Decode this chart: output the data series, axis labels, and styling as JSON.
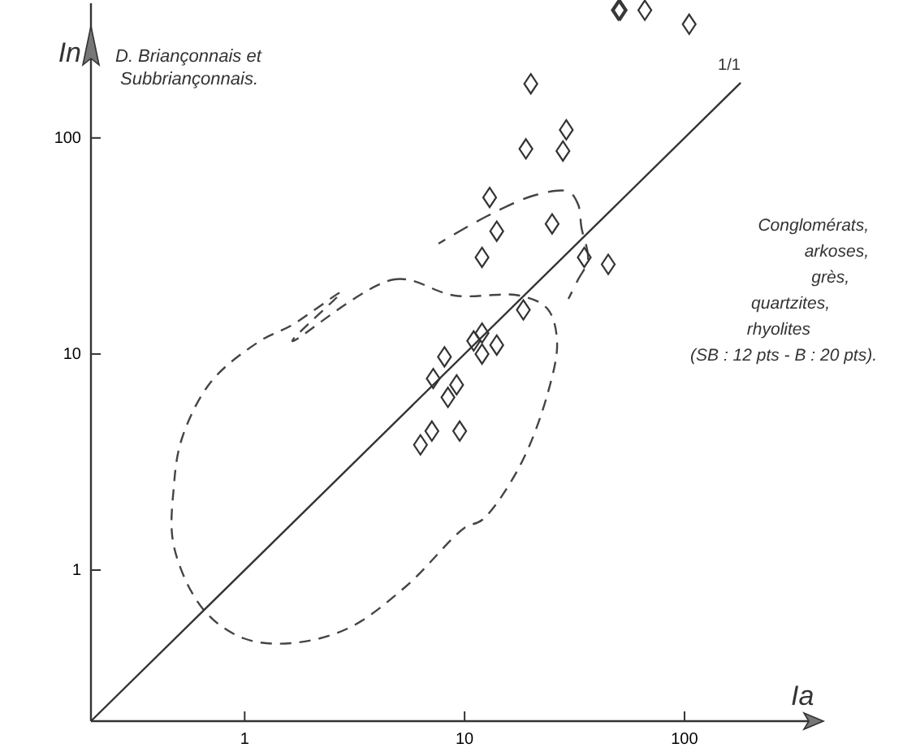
{
  "chart_data": {
    "type": "scatter",
    "title": "D. Briançonnais et Subbriançonnais.",
    "ylabel": "In",
    "xlabel": "Ia",
    "log": "xy",
    "xlim": [
      0.2,
      400
    ],
    "ylim": [
      0.2,
      420
    ],
    "xticks": [
      1,
      10,
      100
    ],
    "yticks": [
      1,
      10,
      100
    ],
    "annotations": [
      "Conglomérats, arkoses, grès, quartzites, rhyolites (SB : 12 pts - B : 20 pts)."
    ],
    "series": [
      {
        "marker": "diamond",
        "color": "#333333",
        "x": [
          50,
          51,
          66,
          105,
          20,
          19,
          29,
          28,
          13,
          14,
          25,
          12,
          35,
          45,
          18.5,
          12,
          11,
          12,
          14,
          8.1,
          7.2,
          9.2,
          8.4,
          7.1,
          9.5,
          6.3
        ],
        "values": [
          390,
          390,
          390,
          336,
          178,
          89,
          109,
          87,
          53,
          37,
          40,
          28,
          28,
          26,
          16,
          12.5,
          11.5,
          10,
          11,
          9.7,
          7.7,
          7.2,
          6.3,
          4.4,
          4.4,
          3.8
        ]
      },
      {
        "type": "line",
        "name": "1/1",
        "color": "#333333",
        "line_style": "solid",
        "x": [
          0.2,
          180
        ],
        "values": [
          0.2,
          180
        ]
      }
    ]
  }
}
